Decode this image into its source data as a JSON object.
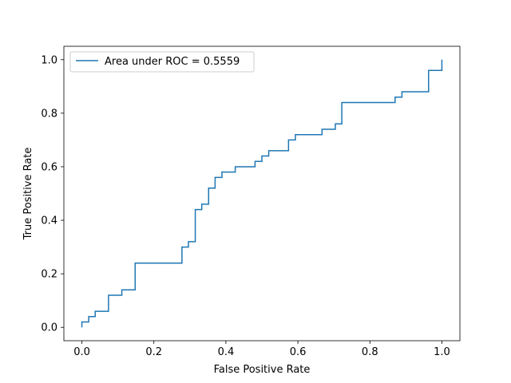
{
  "chart_data": {
    "type": "line",
    "xlabel": "False Positive Rate",
    "ylabel": "True Positive Rate",
    "xlim": [
      -0.05,
      1.05
    ],
    "ylim": [
      -0.05,
      1.05
    ],
    "x_ticks": [
      0.0,
      0.2,
      0.4,
      0.6,
      0.8,
      1.0
    ],
    "y_ticks": [
      0.0,
      0.2,
      0.4,
      0.6,
      0.8,
      1.0
    ],
    "x_tick_labels": [
      "0.0",
      "0.2",
      "0.4",
      "0.6",
      "0.8",
      "1.0"
    ],
    "y_tick_labels": [
      "0.0",
      "0.2",
      "0.4",
      "0.6",
      "0.8",
      "1.0"
    ],
    "grid": false,
    "legend_position": "top-left",
    "series": [
      {
        "name": "Area under ROC = 0.5559",
        "color": "#1f77b4",
        "step": true,
        "x": [
          0.0,
          0.0,
          0.019,
          0.019,
          0.037,
          0.037,
          0.074,
          0.074,
          0.111,
          0.111,
          0.148,
          0.148,
          0.278,
          0.278,
          0.296,
          0.296,
          0.315,
          0.315,
          0.333,
          0.333,
          0.352,
          0.352,
          0.37,
          0.37,
          0.389,
          0.389,
          0.426,
          0.426,
          0.481,
          0.481,
          0.5,
          0.5,
          0.519,
          0.519,
          0.574,
          0.574,
          0.593,
          0.593,
          0.667,
          0.667,
          0.704,
          0.704,
          0.722,
          0.722,
          0.87,
          0.87,
          0.889,
          0.889,
          0.963,
          0.963,
          1.0,
          1.0
        ],
        "y": [
          0.0,
          0.02,
          0.02,
          0.04,
          0.04,
          0.06,
          0.06,
          0.12,
          0.12,
          0.14,
          0.14,
          0.24,
          0.24,
          0.3,
          0.3,
          0.32,
          0.32,
          0.44,
          0.44,
          0.46,
          0.46,
          0.52,
          0.52,
          0.56,
          0.56,
          0.58,
          0.58,
          0.6,
          0.6,
          0.62,
          0.62,
          0.64,
          0.64,
          0.66,
          0.66,
          0.7,
          0.7,
          0.72,
          0.72,
          0.74,
          0.74,
          0.76,
          0.76,
          0.84,
          0.84,
          0.86,
          0.86,
          0.88,
          0.88,
          0.96,
          0.96,
          1.0
        ]
      }
    ]
  }
}
